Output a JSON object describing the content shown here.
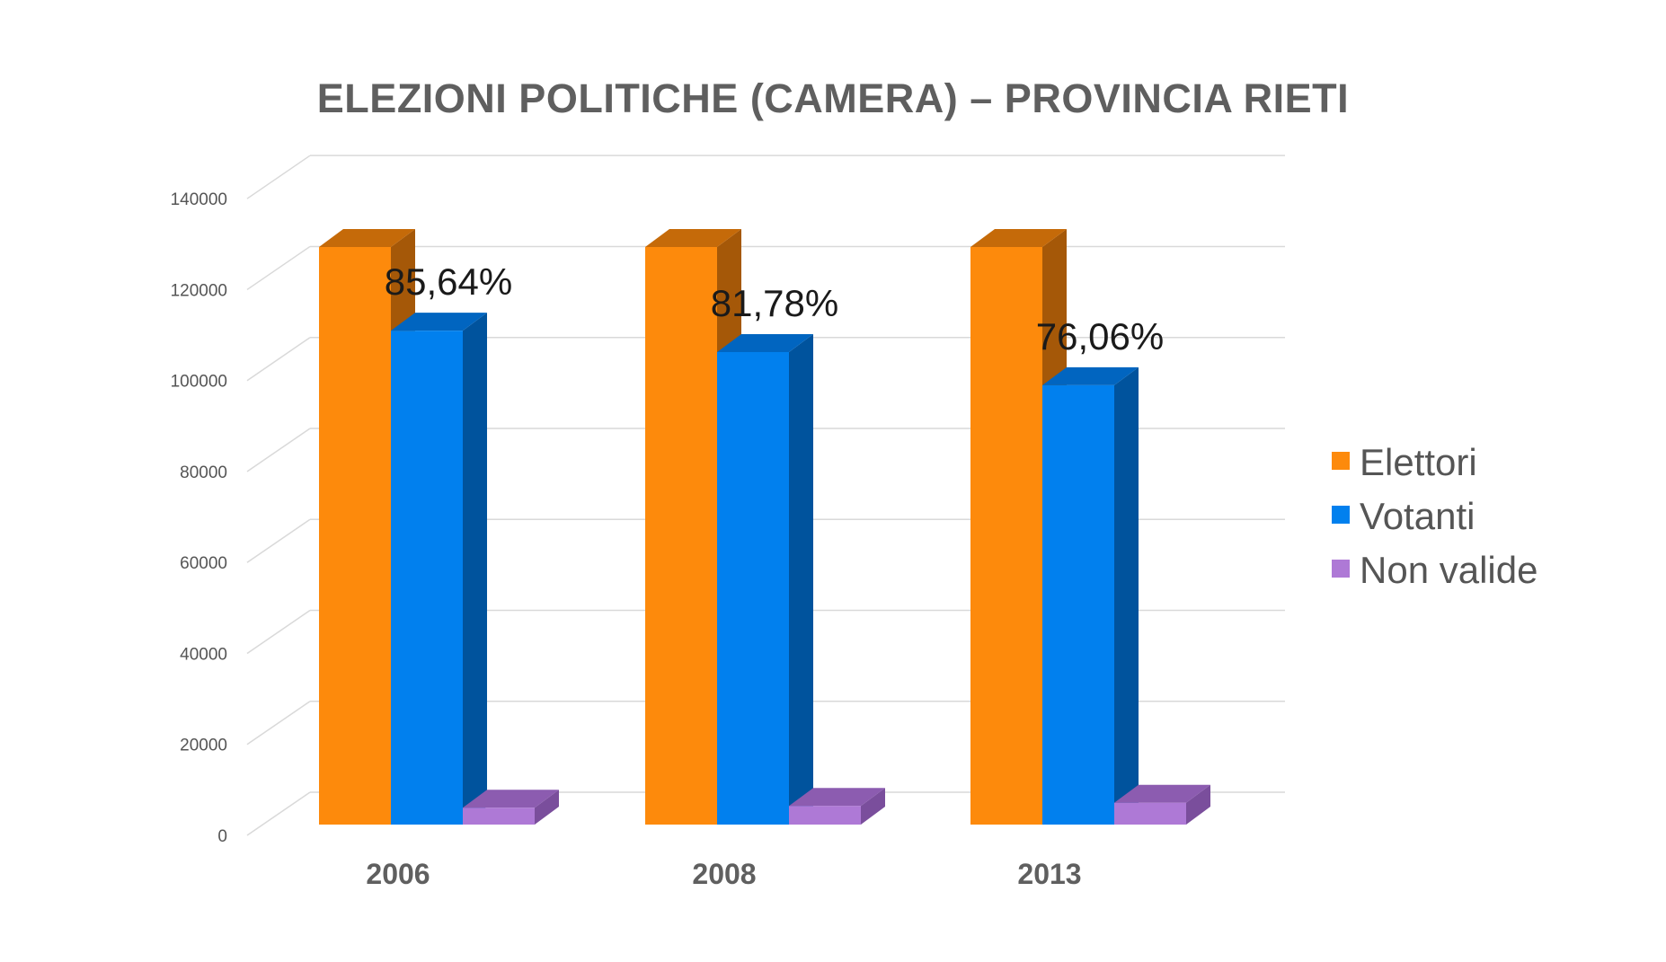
{
  "chart_data": {
    "type": "bar",
    "title": "ELEZIONI POLITICHE (CAMERA) – PROVINCIA RIETI",
    "categories": [
      "2006",
      "2008",
      "2013"
    ],
    "series": [
      {
        "name": "Elettori",
        "values": [
          127000,
          127000,
          127000
        ]
      },
      {
        "name": "Votanti",
        "values": [
          108600,
          103900,
          96600
        ]
      },
      {
        "name": "Non valide",
        "values": [
          3700,
          4100,
          4800
        ]
      }
    ],
    "data_labels": [
      "85,64%",
      "81,78%",
      "76,06%"
    ],
    "ylim": [
      0,
      140000
    ],
    "yticks": [
      0,
      20000,
      40000,
      60000,
      80000,
      100000,
      120000,
      140000
    ],
    "grid": true,
    "legend_position": "right",
    "three_d": true,
    "colors": {
      "Elettori": {
        "front": "#fd8a0c",
        "top": "#c56a09",
        "side": "#a55808"
      },
      "Votanti": {
        "front": "#0180ee",
        "top": "#0165c0",
        "side": "#00539d"
      },
      "Non valide": {
        "front": "#ae79d6",
        "top": "#8c5cb0",
        "side": "#7a4e9c"
      }
    },
    "axis_text_color": "#555555",
    "title_color": "#5f5f5f"
  }
}
